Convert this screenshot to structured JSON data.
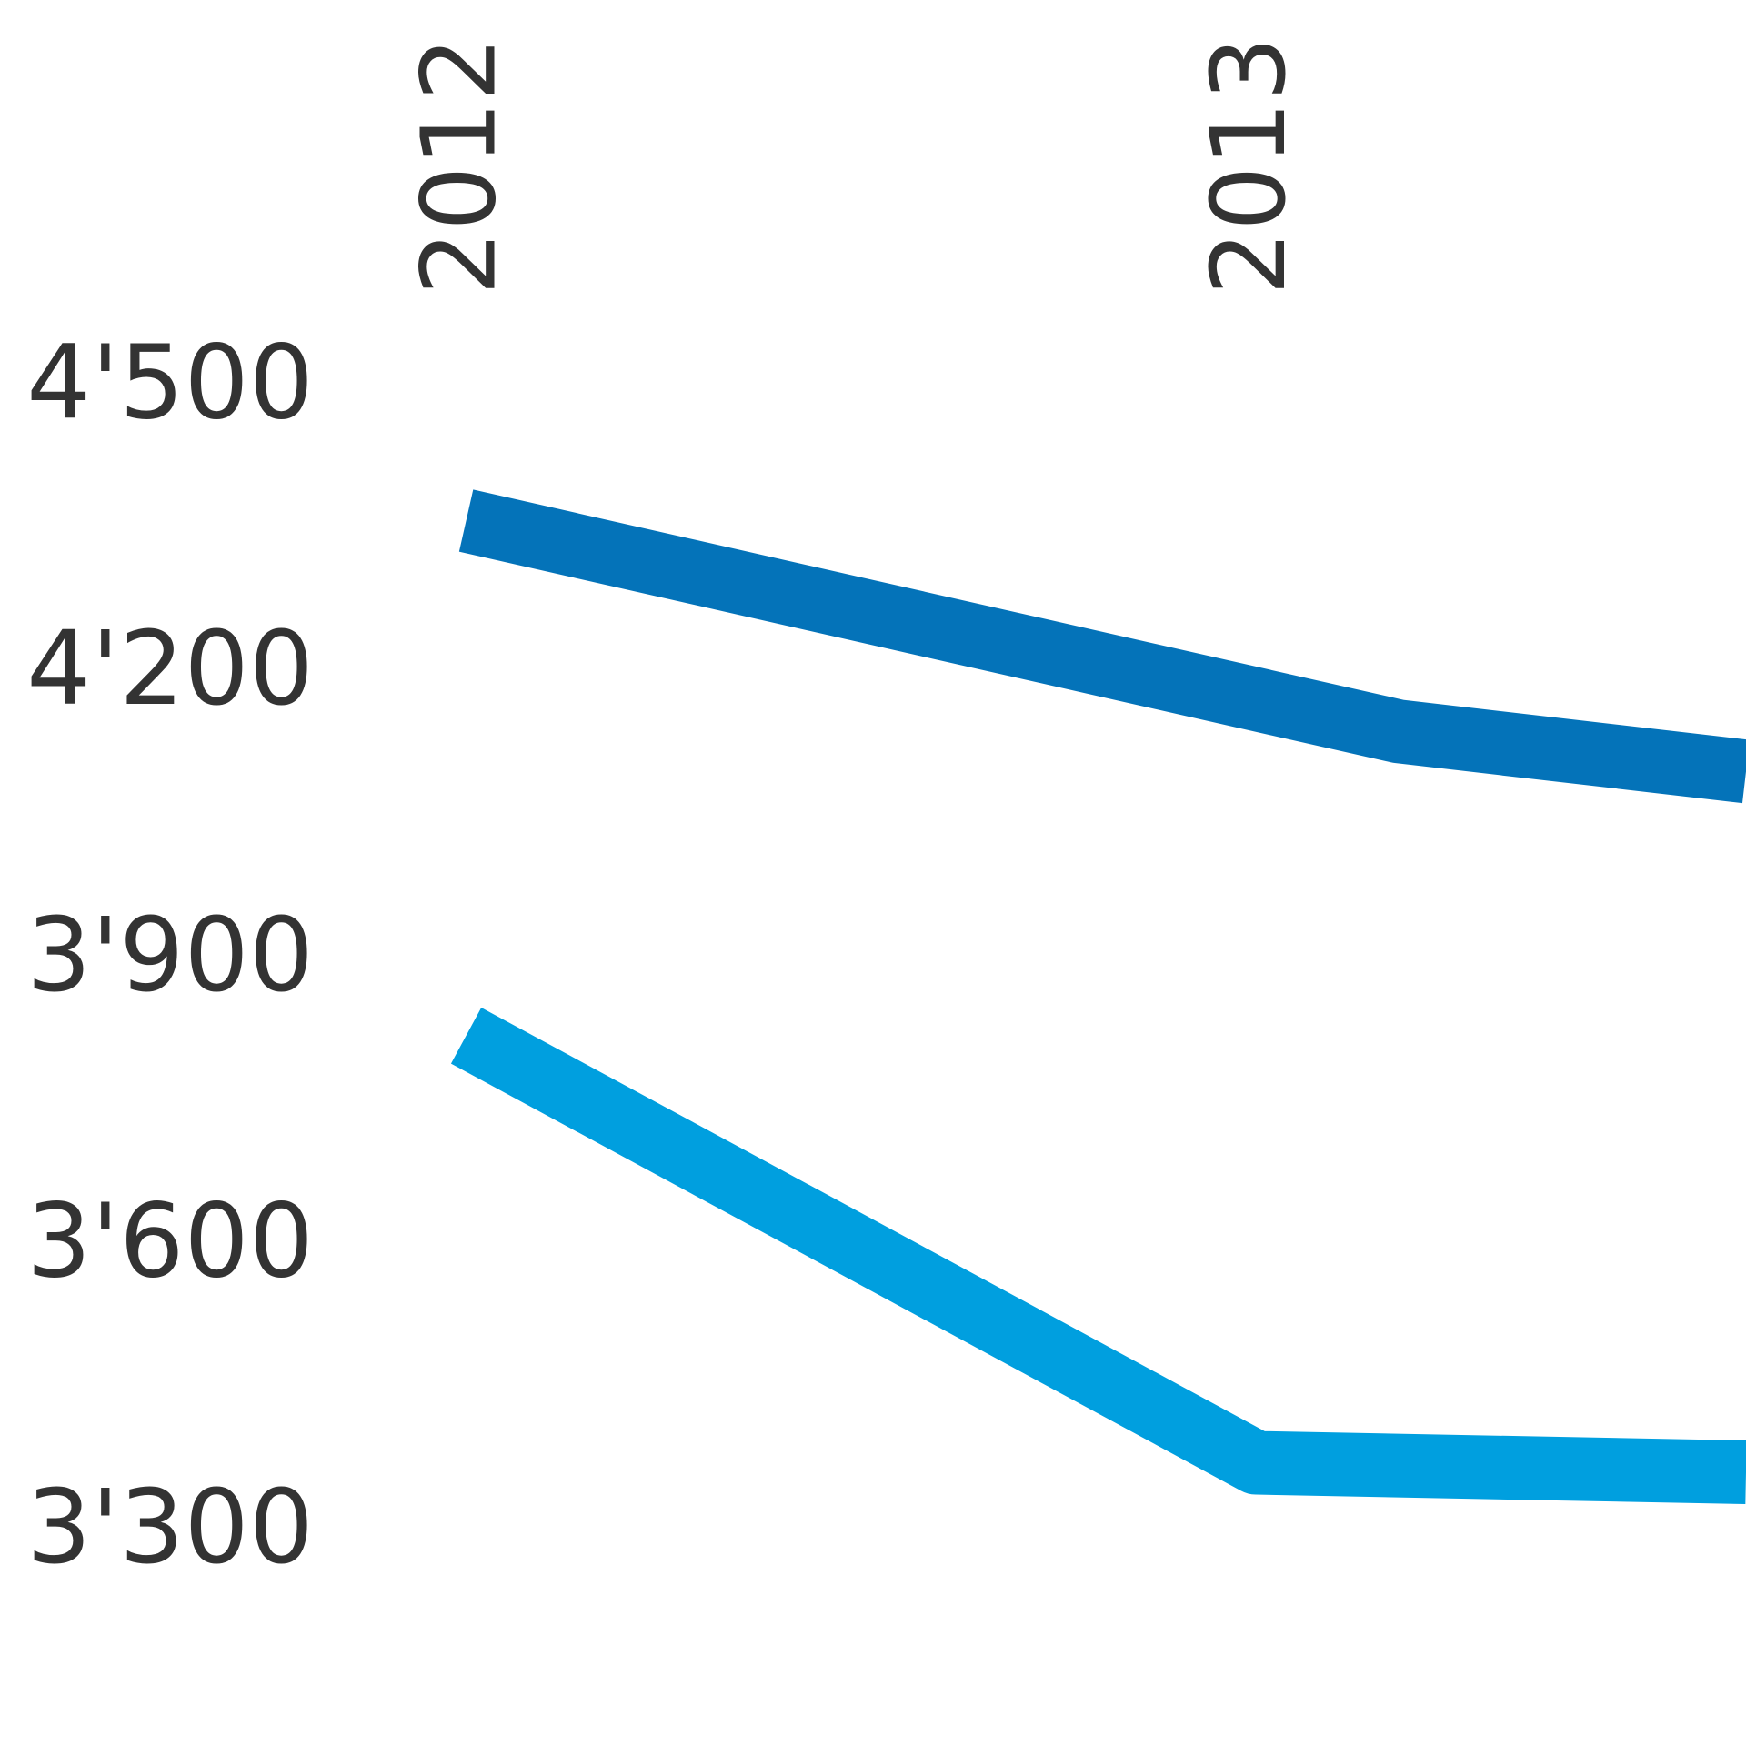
{
  "chart_data": {
    "type": "line",
    "series": [
      {
        "color": "#0473b9",
        "x": [
          2012,
          2013.18,
          2013.62
        ],
        "values": [
          4363,
          4142,
          4100
        ]
      },
      {
        "color": "#009fdf",
        "x": [
          2012,
          2013,
          2013.62
        ],
        "values": [
          3823,
          3375,
          3365
        ]
      }
    ],
    "xlim": [
      2011.41,
      2013.62
    ],
    "xticks": [
      2012,
      2013
    ],
    "ylim": [
      3078,
      4909
    ],
    "yticks": [
      {
        "value": 4500,
        "label": "4'500"
      },
      {
        "value": 4200,
        "label": "4'200"
      },
      {
        "value": 3900,
        "label": "3'900"
      },
      {
        "value": 3600,
        "label": "3'600"
      },
      {
        "value": 3300,
        "label": "3'300"
      }
    ],
    "grid": false
  }
}
